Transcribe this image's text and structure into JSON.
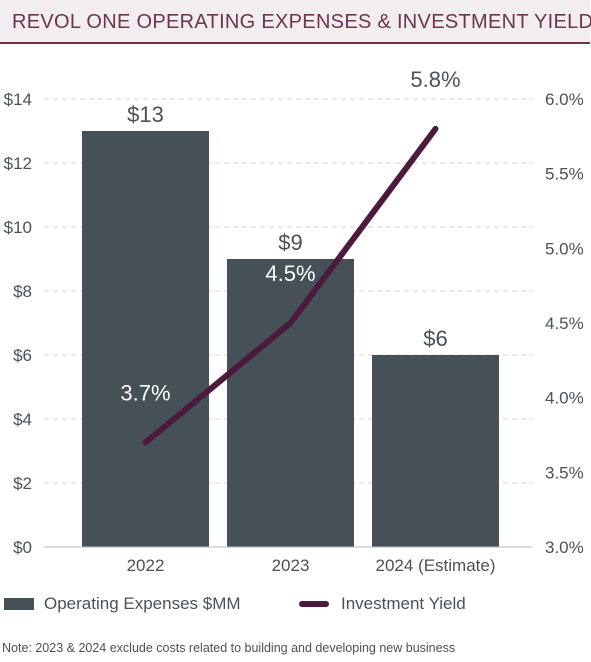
{
  "title": "REVOL ONE OPERATING EXPENSES & INVESTMENT YIELD",
  "note": "Note: 2023 & 2024 exclude costs related to building and developing new business",
  "colors": {
    "title_text": "#6d3350",
    "title_bg": "#f2eef0",
    "bar": "#465157",
    "line": "#4b1a3c",
    "text": "#4a5258",
    "grid": "#d0d0d0"
  },
  "chart_data": {
    "type": "bar",
    "categories": [
      "2022",
      "2023",
      "2024 (Estimate)"
    ],
    "series": [
      {
        "name": "Operating Expenses $MM",
        "type": "bar",
        "axis": "left",
        "values": [
          13,
          9,
          6
        ],
        "labels": [
          "$13",
          "$9",
          "$6"
        ]
      },
      {
        "name": "Investment Yield",
        "type": "line",
        "axis": "right",
        "values": [
          3.7,
          4.5,
          5.8
        ],
        "labels": [
          "3.7%",
          "4.5%",
          "5.8%"
        ]
      }
    ],
    "y_left": {
      "lim": [
        0,
        14
      ],
      "ticks": [
        0,
        2,
        4,
        6,
        8,
        10,
        12,
        14
      ],
      "tick_labels": [
        "$0",
        "$2",
        "$4",
        "$6",
        "$8",
        "$10",
        "$12",
        "$14"
      ]
    },
    "y_right": {
      "lim": [
        3.0,
        6.0
      ],
      "ticks": [
        3.0,
        3.5,
        4.0,
        4.5,
        5.0,
        5.5,
        6.0
      ],
      "tick_labels": [
        "3.0%",
        "3.5%",
        "4.0%",
        "4.5%",
        "5.0%",
        "5.5%",
        "6.0%"
      ]
    },
    "grid": "horizontal dashed",
    "legend_position": "bottom-left"
  }
}
